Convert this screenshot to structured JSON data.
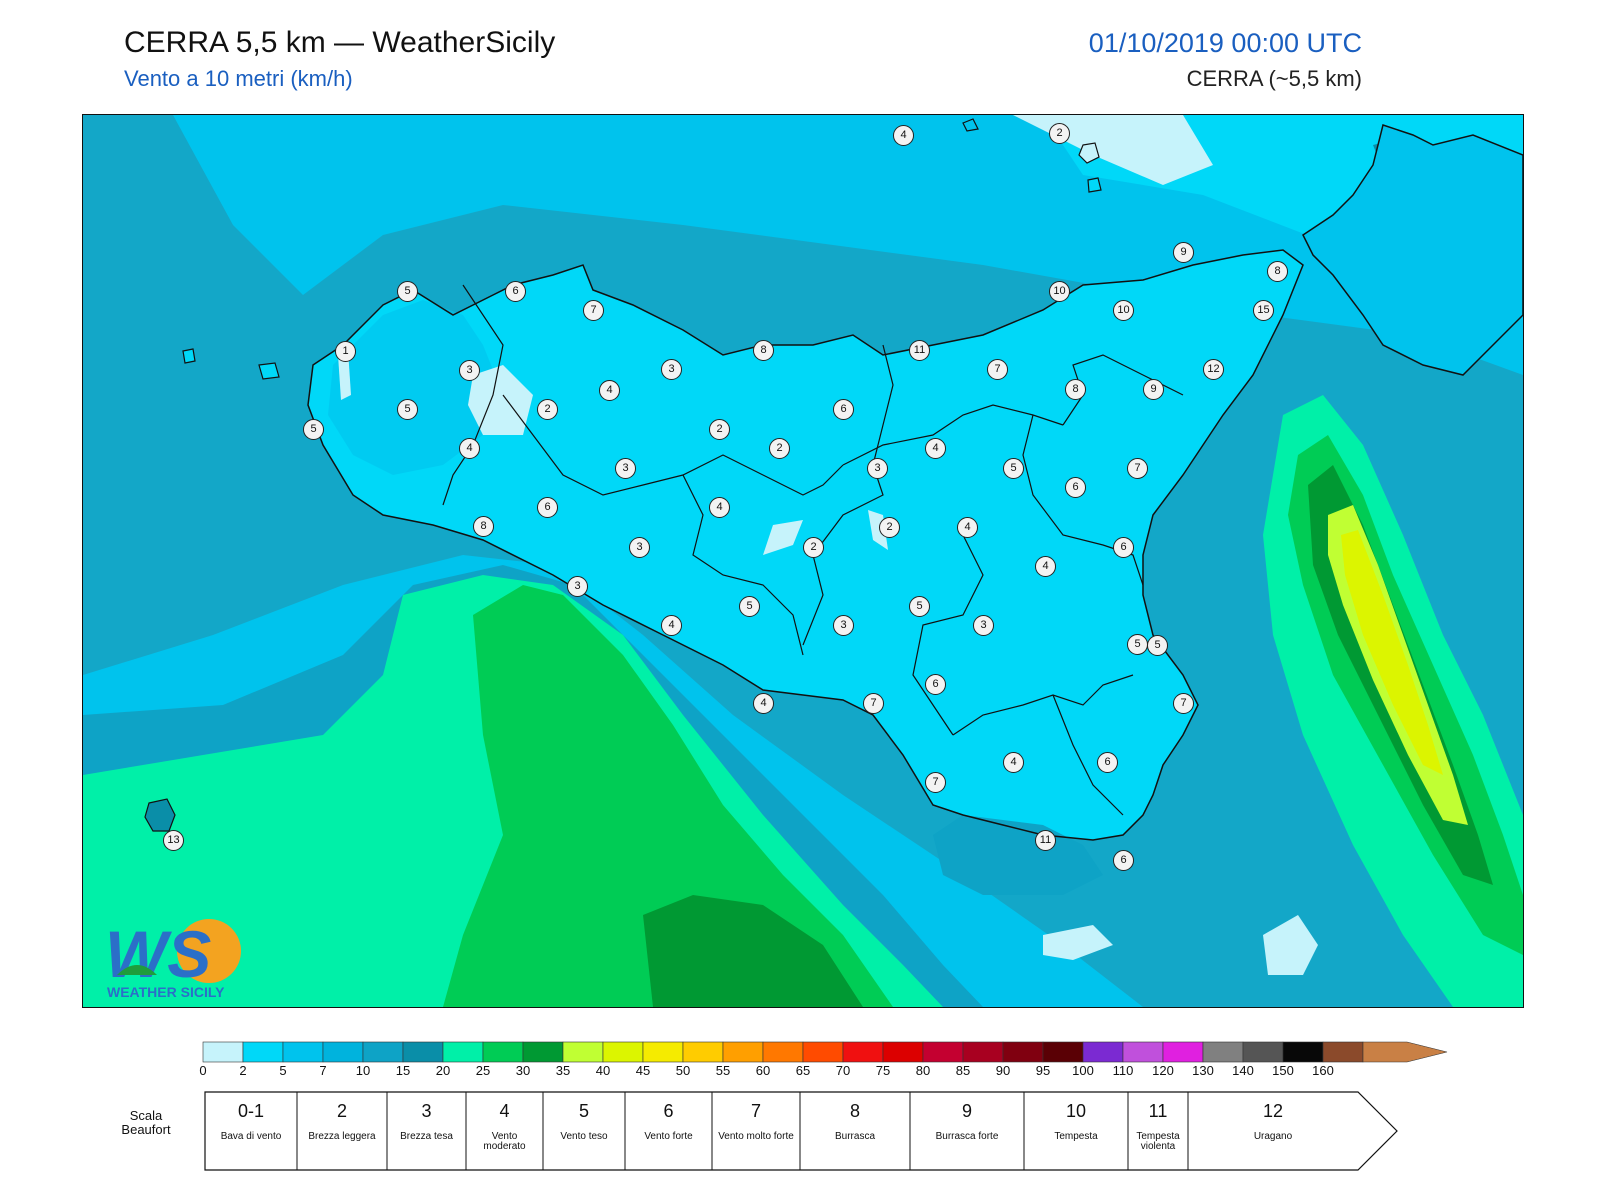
{
  "header": {
    "title": "CERRA 5,5 km — WeatherSicily",
    "subtitle": "Vento a 10 metri (km/h)",
    "datetime": "01/10/2019 00:00 UTC",
    "model": "CERRA (~5,5 km)"
  },
  "logo": {
    "letters": "WS",
    "name": "WEATHER SICILY"
  },
  "stations": [
    {
      "v": "4"
    },
    {
      "v": "2"
    },
    {
      "v": "9"
    },
    {
      "v": "8"
    },
    {
      "v": "5"
    },
    {
      "v": "6"
    },
    {
      "v": "7"
    },
    {
      "v": "10"
    },
    {
      "v": "10"
    },
    {
      "v": "15"
    },
    {
      "v": "1"
    },
    {
      "v": "8"
    },
    {
      "v": "11"
    },
    {
      "v": "3"
    },
    {
      "v": "3"
    },
    {
      "v": "7"
    },
    {
      "v": "12"
    },
    {
      "v": "4"
    },
    {
      "v": "8"
    },
    {
      "v": "9"
    },
    {
      "v": "5"
    },
    {
      "v": "2"
    },
    {
      "v": "6"
    },
    {
      "v": "5"
    },
    {
      "v": "2"
    },
    {
      "v": "4"
    },
    {
      "v": "4"
    },
    {
      "v": "2"
    },
    {
      "v": "3"
    },
    {
      "v": "5"
    },
    {
      "v": "7"
    },
    {
      "v": "3"
    },
    {
      "v": "6"
    },
    {
      "v": "6"
    },
    {
      "v": "4"
    },
    {
      "v": "8"
    },
    {
      "v": "2"
    },
    {
      "v": "4"
    },
    {
      "v": "3"
    },
    {
      "v": "2"
    },
    {
      "v": "6"
    },
    {
      "v": "4"
    },
    {
      "v": "3"
    },
    {
      "v": "5"
    },
    {
      "v": "5"
    },
    {
      "v": "4"
    },
    {
      "v": "3"
    },
    {
      "v": "3"
    },
    {
      "v": "5"
    },
    {
      "v": "5"
    },
    {
      "v": "4"
    },
    {
      "v": "7"
    },
    {
      "v": "6"
    },
    {
      "v": "7"
    },
    {
      "v": "7"
    },
    {
      "v": "4"
    },
    {
      "v": "6"
    },
    {
      "v": "11"
    },
    {
      "v": "6"
    },
    {
      "v": "13"
    }
  ],
  "colorbar": {
    "ticks": [
      "0",
      "2",
      "5",
      "7",
      "10",
      "15",
      "20",
      "25",
      "30",
      "35",
      "40",
      "45",
      "50",
      "55",
      "60",
      "65",
      "70",
      "75",
      "80",
      "85",
      "90",
      "95",
      "100",
      "110",
      "120",
      "130",
      "140",
      "150",
      "160"
    ],
    "colors": [
      "#c6f3fb",
      "#00d8f8",
      "#00c3ed",
      "#00b3dd",
      "#0ea3c6",
      "#0a8ea8",
      "#00f0a8",
      "#00cc55",
      "#009933",
      "#c0ff33",
      "#dcf500",
      "#f5eb00",
      "#ffcc00",
      "#ff9f00",
      "#ff7800",
      "#ff4b00",
      "#f01010",
      "#dc0000",
      "#c40030",
      "#a80020",
      "#800010",
      "#5a0005",
      "#7b2ad2",
      "#c050dc",
      "#e020e0",
      "#808080",
      "#555555",
      "#080808",
      "#8b4a2b",
      "#c98045"
    ]
  },
  "beaufort": {
    "label": "Scala Beaufort",
    "scales": [
      {
        "n": "0-1",
        "d": "Bava di vento"
      },
      {
        "n": "2",
        "d": "Brezza leggera"
      },
      {
        "n": "3",
        "d": "Brezza tesa"
      },
      {
        "n": "4",
        "d": "Vento moderato"
      },
      {
        "n": "5",
        "d": "Vento teso"
      },
      {
        "n": "6",
        "d": "Vento forte"
      },
      {
        "n": "7",
        "d": "Vento molto forte"
      },
      {
        "n": "8",
        "d": "Burrasca"
      },
      {
        "n": "9",
        "d": "Burrasca forte"
      },
      {
        "n": "10",
        "d": "Tempesta"
      },
      {
        "n": "11",
        "d": "Tempesta violenta"
      },
      {
        "n": "12",
        "d": "Uragano"
      }
    ]
  }
}
